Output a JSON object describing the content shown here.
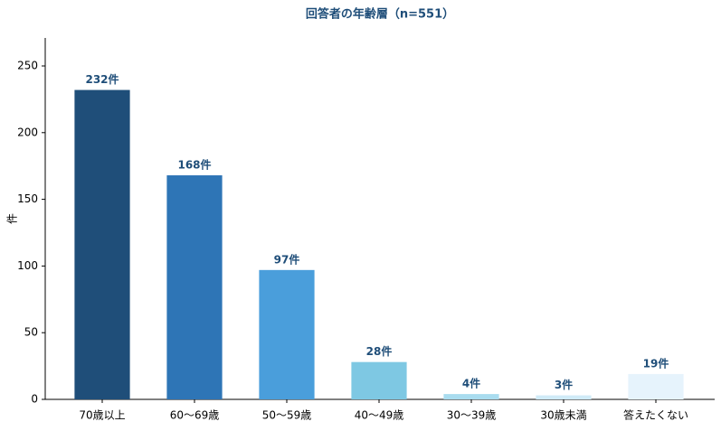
{
  "chart_data": {
    "type": "bar",
    "title": "回答者の年齢層（n=551）",
    "ylabel": "件",
    "categories": [
      "70歳以上",
      "60〜69歳",
      "50〜59歳",
      "40〜49歳",
      "30〜39歳",
      "30歳未満",
      "答えたくない"
    ],
    "values": [
      232,
      168,
      97,
      28,
      4,
      3,
      19
    ],
    "value_labels": [
      "232件",
      "168件",
      "97件",
      "28件",
      "4件",
      "3件",
      "19件"
    ],
    "colors": [
      "#1f4e79",
      "#2e75b6",
      "#4a9edb",
      "#7ec8e3",
      "#a9dcef",
      "#d0ebf7",
      "#e6f3fc"
    ],
    "ylim": [
      0,
      271
    ],
    "yticks": [
      0,
      50,
      100,
      150,
      200,
      250
    ],
    "grid": false
  }
}
